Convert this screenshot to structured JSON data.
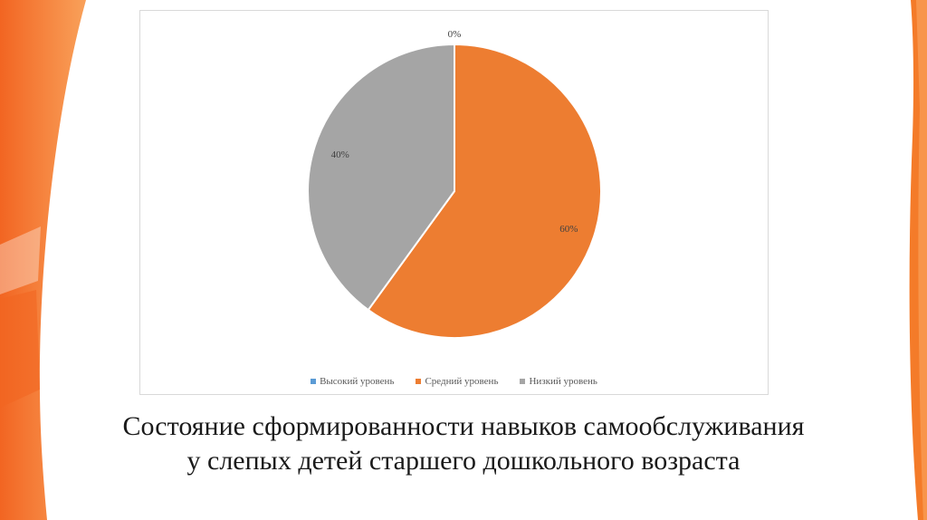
{
  "slide": {
    "title_line1": "Состояние сформированности навыков самообслуживания",
    "title_line2": "у слепых детей старшего дошкольного возраста"
  },
  "chart_data": {
    "type": "pie",
    "categories": [
      "Высокий уровень",
      "Средний уровень",
      "Низкий уровень"
    ],
    "values": [
      0,
      60,
      40
    ],
    "data_labels": [
      "0%",
      "60%",
      "40%"
    ],
    "colors": [
      "#5b9bd5",
      "#ed7d31",
      "#a5a5a5"
    ],
    "legend_position": "bottom"
  }
}
